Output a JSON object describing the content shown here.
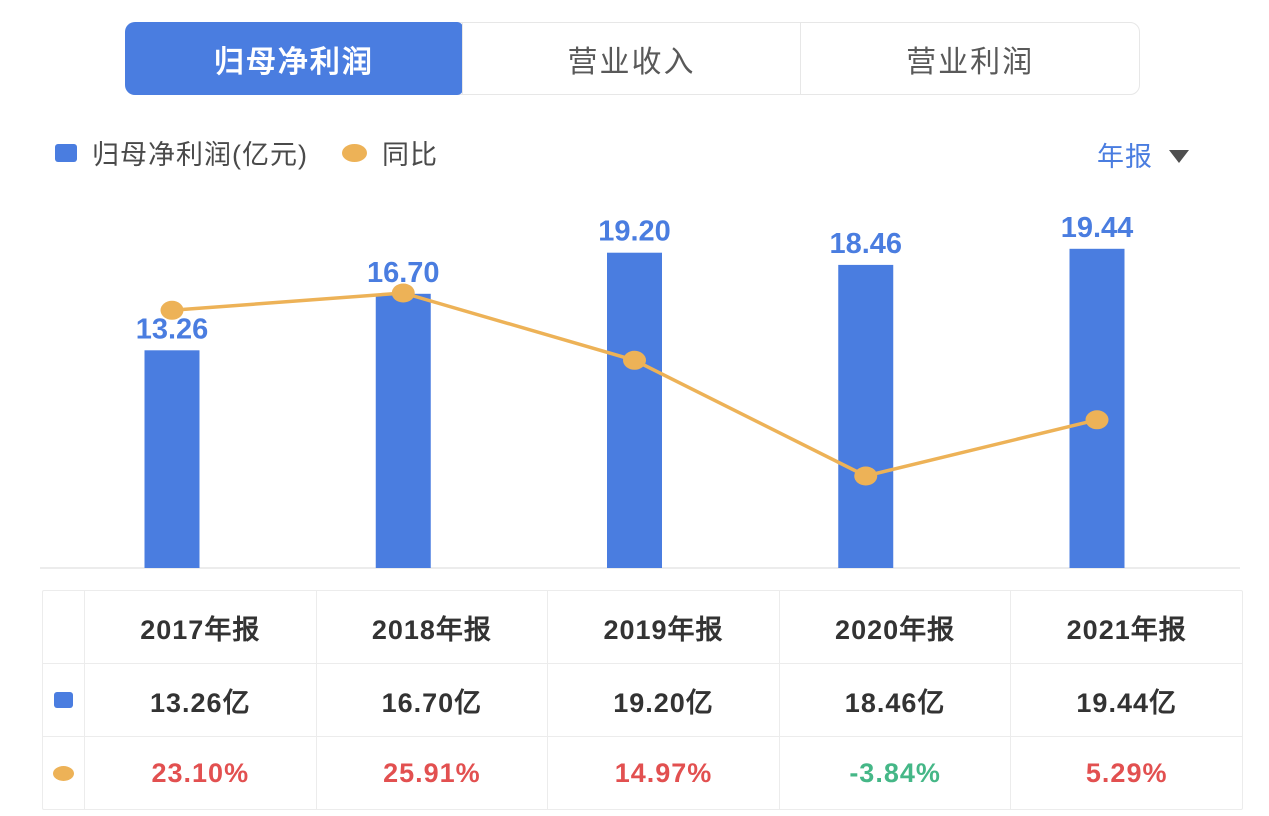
{
  "tabs": [
    {
      "label": "归母净利润",
      "active": true
    },
    {
      "label": "营业收入",
      "active": false
    },
    {
      "label": "营业利润",
      "active": false
    }
  ],
  "legend": {
    "bar_label": "归母净利润(亿元)",
    "line_label": "同比"
  },
  "period_selector": {
    "label": "年报"
  },
  "colors": {
    "accent_blue": "#4a7de0",
    "line_orange": "#edb257",
    "up_red": "#e25050",
    "down_green": "#45b787",
    "text_dark": "#333333",
    "axis_gray": "#ececec"
  },
  "chart_data": {
    "type": "bar",
    "categories": [
      "2017年报",
      "2018年报",
      "2019年报",
      "2020年报",
      "2021年报"
    ],
    "series": [
      {
        "name": "归母净利润(亿元)",
        "kind": "bar",
        "values": [
          13.26,
          16.7,
          19.2,
          18.46,
          19.44
        ],
        "labels": [
          "13.26",
          "16.70",
          "19.20",
          "18.46",
          "19.44"
        ],
        "color": "#4a7de0",
        "label_color": "#4a7de0"
      },
      {
        "name": "同比",
        "kind": "line",
        "values": [
          23.1,
          25.91,
          14.97,
          -3.84,
          5.29
        ],
        "unit": "%",
        "color": "#edb257"
      }
    ],
    "title": "",
    "xlabel": "",
    "ylabel": "",
    "grid": false,
    "legend_position": "top",
    "bar_value_labels": true,
    "x_axis_line": true
  },
  "table": {
    "headers": [
      "2017年报",
      "2018年报",
      "2019年报",
      "2020年报",
      "2021年报"
    ],
    "rows": [
      {
        "marker": "bar-series-marker",
        "values": [
          "13.26亿",
          "16.70亿",
          "19.20亿",
          "18.46亿",
          "19.44亿"
        ],
        "trend": [
          "plain",
          "plain",
          "plain",
          "plain",
          "plain"
        ]
      },
      {
        "marker": "line-series-marker",
        "values": [
          "23.10%",
          "25.91%",
          "14.97%",
          "-3.84%",
          "5.29%"
        ],
        "trend": [
          "up",
          "up",
          "up",
          "down",
          "up"
        ]
      }
    ]
  }
}
